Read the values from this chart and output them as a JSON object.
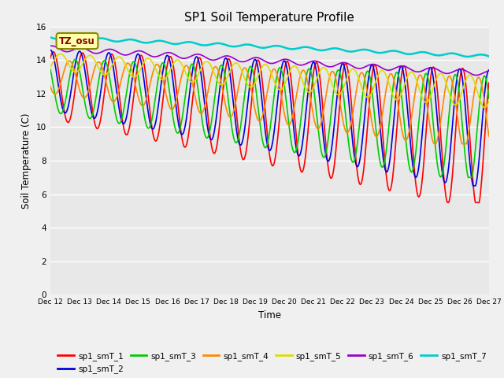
{
  "title": "SP1 Soil Temperature Profile",
  "xlabel": "Time",
  "ylabel": "Soil Temperature (C)",
  "ylim": [
    0,
    16
  ],
  "yticks": [
    0,
    2,
    4,
    6,
    8,
    10,
    12,
    14,
    16
  ],
  "xtick_labels": [
    "Dec 12",
    "Dec 13",
    "Dec 14",
    "Dec 15",
    "Dec 16",
    "Dec 17",
    "Dec 18",
    "Dec 19",
    "Dec 20",
    "Dec 21",
    "Dec 22",
    "Dec 23",
    "Dec 24",
    "Dec 25",
    "Dec 26",
    "Dec 27"
  ],
  "annotation_text": "TZ_osu",
  "series_colors": {
    "sp1_smT_1": "#ff0000",
    "sp1_smT_2": "#0000dd",
    "sp1_smT_3": "#00cc00",
    "sp1_smT_4": "#ff8800",
    "sp1_smT_5": "#dddd00",
    "sp1_smT_6": "#9900cc",
    "sp1_smT_7": "#00cccc"
  },
  "background_color": "#e8e8e8",
  "plot_bg_color": "#e8e8e8",
  "fig_bg_color": "#f0f0f0",
  "title_fontsize": 11
}
